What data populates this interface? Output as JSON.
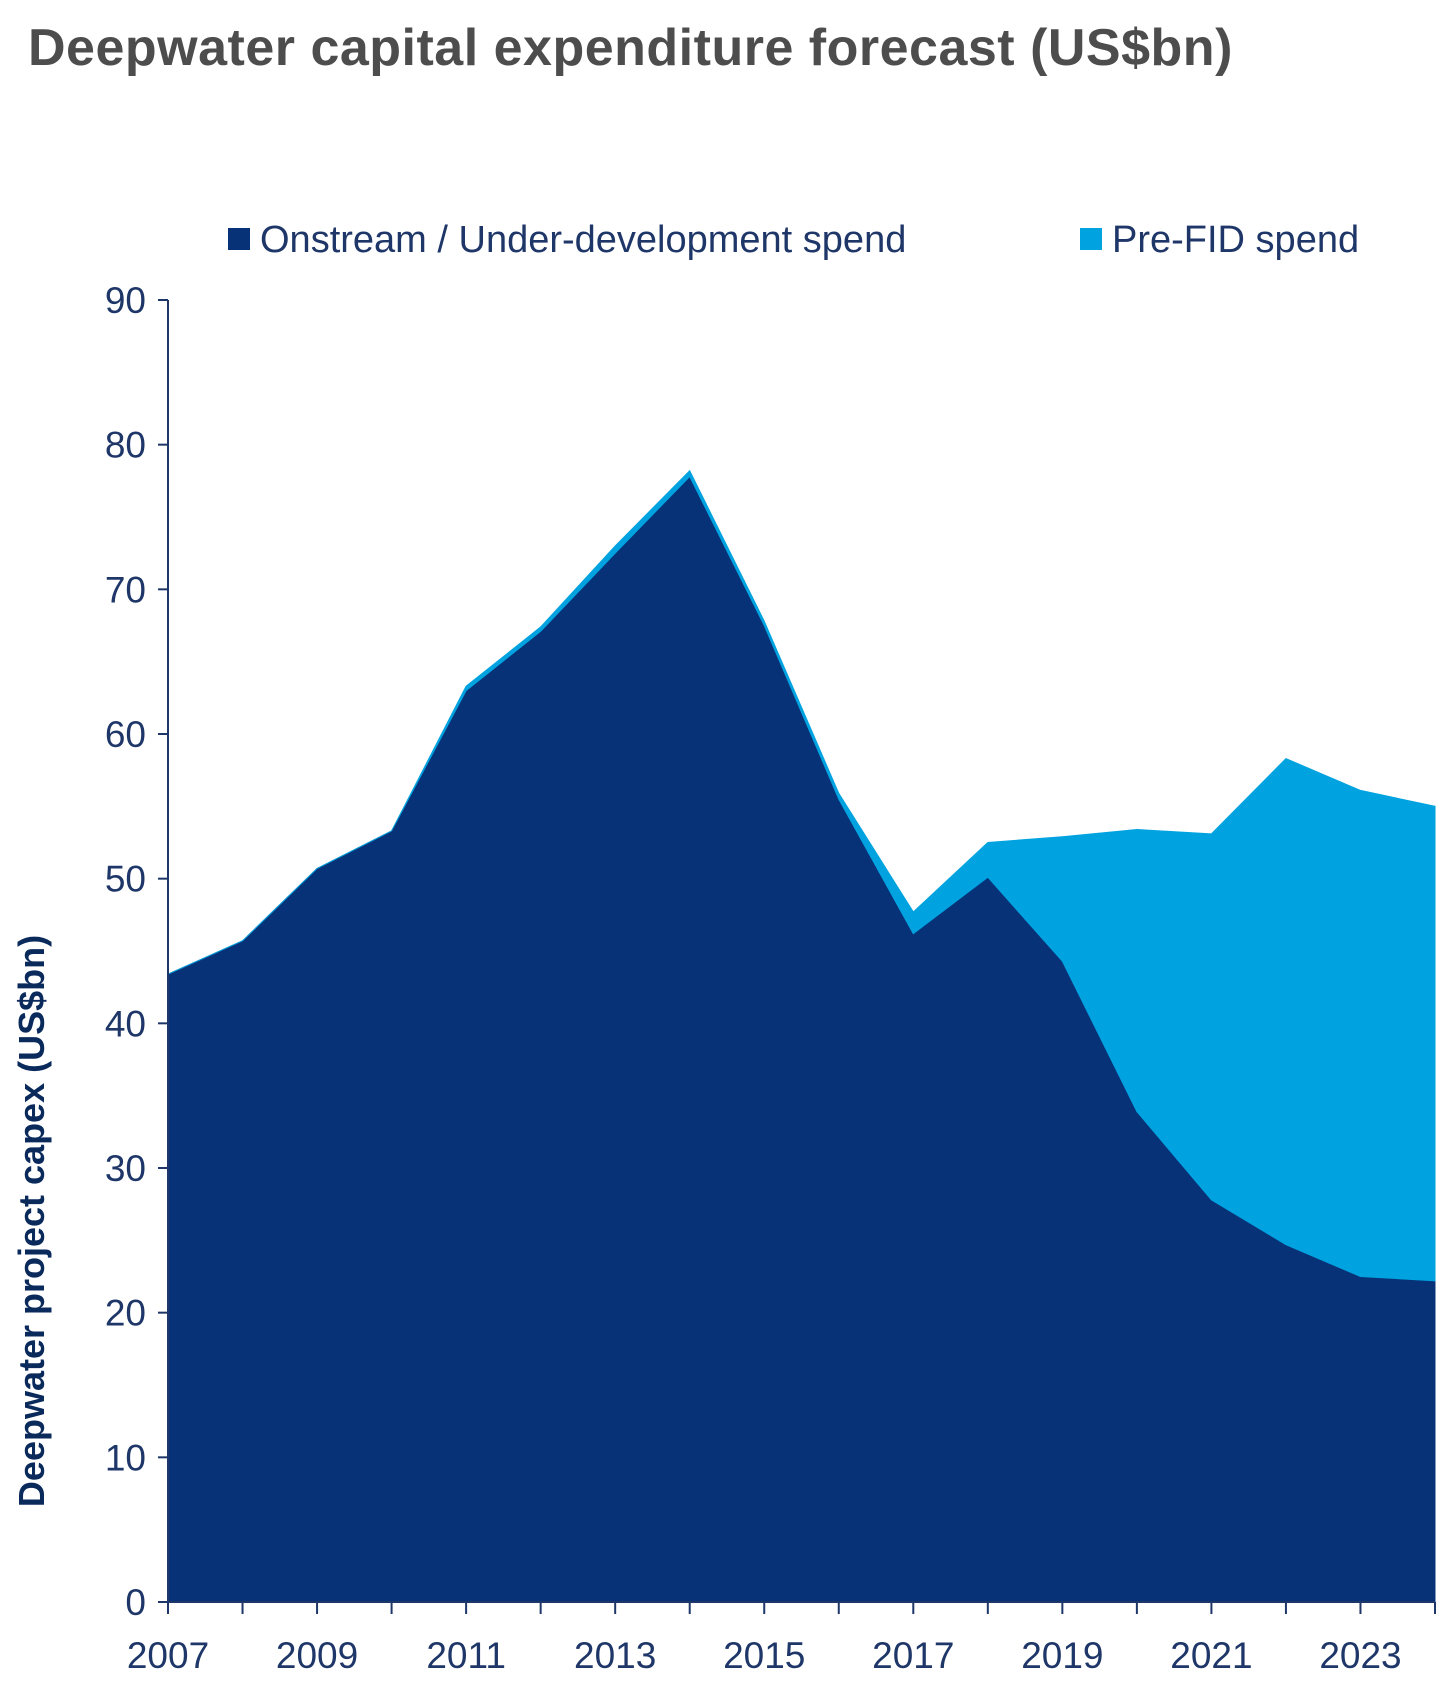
{
  "chart_data": {
    "type": "area",
    "stacked": true,
    "title": "Deepwater capital expenditure forecast (US$bn)",
    "xlabel": "",
    "ylabel": "Deepwater project capex (US$bn)",
    "ylim": [
      0,
      90
    ],
    "yticks": [
      0,
      10,
      20,
      30,
      40,
      50,
      60,
      70,
      80,
      90
    ],
    "x": [
      2007,
      2008,
      2009,
      2010,
      2011,
      2012,
      2013,
      2014,
      2015,
      2016,
      2017,
      2018,
      2019,
      2020,
      2021,
      2022,
      2023,
      2024
    ],
    "xtick_labels": [
      "2007",
      "2009",
      "2011",
      "2013",
      "2015",
      "2017",
      "2019",
      "2021",
      "2023"
    ],
    "grid": false,
    "legend_position": "top",
    "series": [
      {
        "name": "Onstream / Under-development spend",
        "color": "#073278",
        "values": [
          43.4,
          45.7,
          50.7,
          53.3,
          63.0,
          67.1,
          72.5,
          77.8,
          67.5,
          55.5,
          46.2,
          50.1,
          44.3,
          33.9,
          27.8,
          24.7,
          22.5,
          22.2
        ]
      },
      {
        "name": "Pre-FID spend",
        "color": "#00a3e0",
        "values": [
          0,
          0,
          0,
          0,
          0.3,
          0.3,
          0.5,
          0.4,
          0.3,
          0.4,
          1.5,
          2.4,
          8.6,
          19.5,
          25.3,
          33.6,
          33.6,
          32.8
        ]
      }
    ]
  }
}
